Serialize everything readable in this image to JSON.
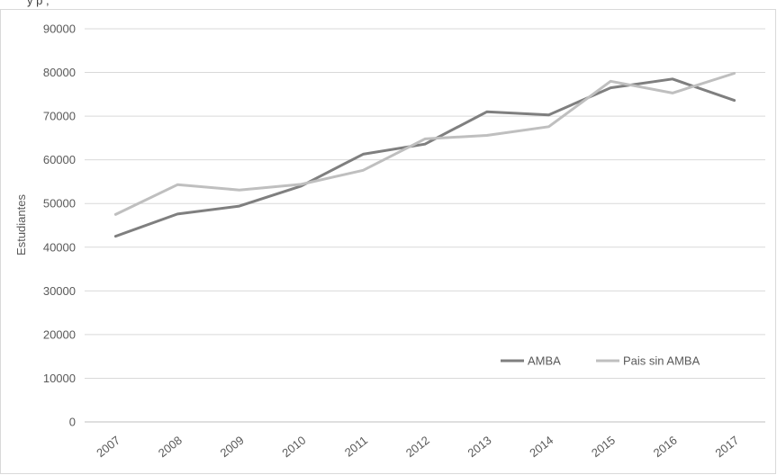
{
  "header_fragment": "y                              p   ,",
  "chart_data": {
    "type": "line",
    "title": "",
    "xlabel": "",
    "ylabel": "Estudiantes",
    "categories": [
      "2007",
      "2008",
      "2009",
      "2010",
      "2011",
      "2012",
      "2013",
      "2014",
      "2015",
      "2016",
      "2017"
    ],
    "ylim": [
      0,
      90000
    ],
    "yticks": [
      0,
      10000,
      20000,
      30000,
      40000,
      50000,
      60000,
      70000,
      80000,
      90000
    ],
    "grid": true,
    "legend": "bottom-right",
    "series": [
      {
        "name": "AMBA",
        "color": "#7f7f7f",
        "values": [
          42500,
          47600,
          49400,
          54000,
          61300,
          63600,
          71000,
          70300,
          76500,
          78500,
          73600
        ]
      },
      {
        "name": "Pais sin AMBA",
        "color": "#bfbfbf",
        "values": [
          47500,
          54300,
          53100,
          54400,
          57600,
          64800,
          65600,
          67600,
          78000,
          75300,
          79800
        ]
      }
    ]
  }
}
